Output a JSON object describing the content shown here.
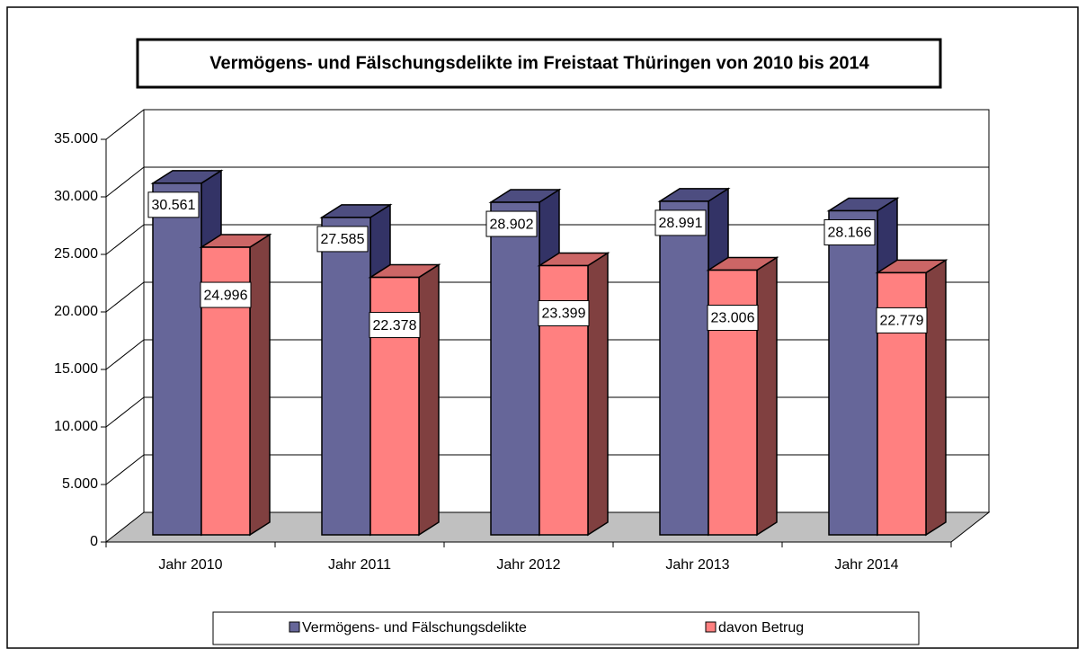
{
  "chart_data": {
    "type": "bar3d",
    "title": "Vermögens- und Fälschungsdelikte im Freistaat Thüringen von 2010 bis 2014",
    "categories": [
      "Jahr 2010",
      "Jahr 2011",
      "Jahr 2012",
      "Jahr 2013",
      "Jahr 2014"
    ],
    "series": [
      {
        "name": "Vermögens- und Fälschungsdelikte",
        "color": "#666699",
        "values": [
          30561,
          27585,
          28902,
          28991,
          28166
        ],
        "value_labels": [
          "30.561",
          "27.585",
          "28.902",
          "28.991",
          "28.166"
        ]
      },
      {
        "name": "davon Betrug",
        "color": "#ff8080",
        "values": [
          24996,
          22378,
          23399,
          23006,
          22779
        ],
        "value_labels": [
          "24.996",
          "22.378",
          "23.399",
          "23.006",
          "22.779"
        ]
      }
    ],
    "ylim": [
      0,
      35000
    ],
    "yticks": [
      0,
      {
        "value": 5000,
        "label": "5.000"
      },
      {
        "value": 10000,
        "label": "10.000"
      },
      {
        "value": 15000,
        "label": "15.000"
      },
      {
        "value": 20000,
        "label": "20.000"
      },
      {
        "value": 25000,
        "label": "25.000"
      },
      {
        "value": 30000,
        "label": "30.000"
      },
      {
        "value": 35000,
        "label": "35.000"
      }
    ],
    "grid": true,
    "legend": "bottom"
  }
}
